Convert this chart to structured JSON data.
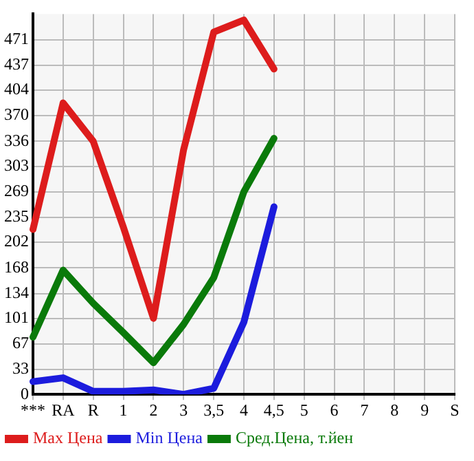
{
  "chart_data": {
    "type": "line",
    "categories": [
      "***",
      "RA",
      "R",
      "1",
      "2",
      "3",
      "3,5",
      "4",
      "4,5",
      "5",
      "6",
      "7",
      "8",
      "9",
      "S"
    ],
    "series": [
      {
        "name": "Max Цена",
        "color": "#dd1c1c",
        "values": [
          219,
          387,
          336,
          222,
          101,
          325,
          481,
          497,
          432,
          null,
          null,
          null,
          null,
          null,
          null
        ]
      },
      {
        "name": "Min Цена",
        "color": "#1c1cdd",
        "values": [
          17,
          22,
          4,
          4,
          6,
          0,
          8,
          96,
          249,
          null,
          null,
          null,
          null,
          null,
          null
        ]
      },
      {
        "name": "Сред.Цена, т.йен",
        "color": "#0a7a0a",
        "values": [
          76,
          165,
          121,
          82,
          42,
          93,
          155,
          269,
          340,
          null,
          null,
          null,
          null,
          null,
          null
        ]
      }
    ],
    "ylim": [
      0,
      505
    ],
    "yticks": [
      0,
      33,
      67,
      101,
      134,
      168,
      202,
      235,
      269,
      303,
      336,
      370,
      404,
      437,
      471
    ],
    "grid": true,
    "legend": "bottom",
    "marker": "none",
    "line_style": "solid"
  }
}
